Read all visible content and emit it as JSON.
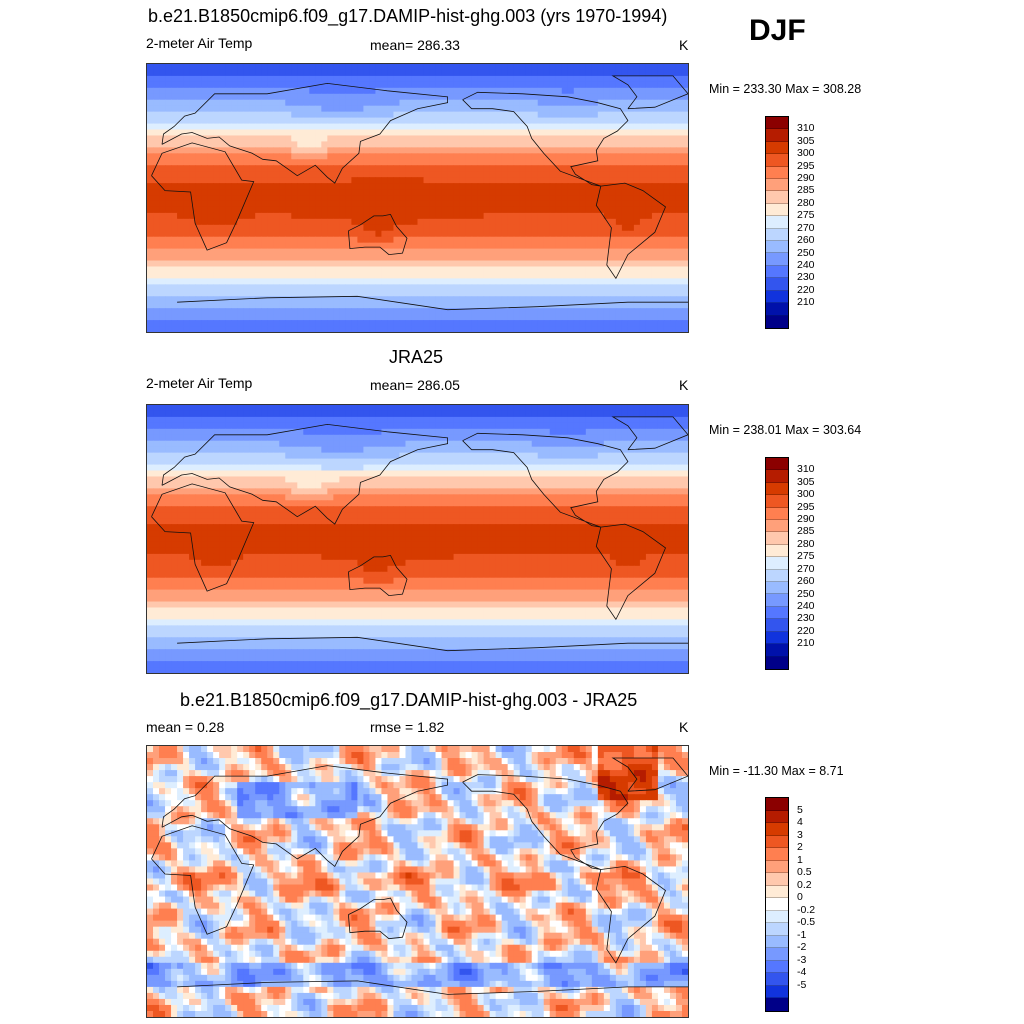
{
  "season": "DJF",
  "panels": [
    {
      "title": "b.e21.B1850cmip6.f09_g17.DAMIP-hist-ghg.003 (yrs 1970-1994)",
      "left": "2-meter Air Temp",
      "center": "mean= 286.33",
      "right": "K",
      "minmax": "Min = 233.30 Max = 308.28",
      "field": "model",
      "colorbar": {
        "colors": [
          "#8b0000",
          "#b51c00",
          "#d63b00",
          "#ee5722",
          "#ff7f50",
          "#ffa07a",
          "#ffc8ad",
          "#ffebd6",
          "#ddeeff",
          "#bcd6ff",
          "#99bbff",
          "#7799ff",
          "#5577ff",
          "#3355ee",
          "#1133dd",
          "#0011aa",
          "#000088"
        ],
        "labels": [
          "310",
          "305",
          "300",
          "295",
          "290",
          "285",
          "280",
          "275",
          "270",
          "260",
          "250",
          "240",
          "230",
          "220",
          "210"
        ]
      }
    },
    {
      "title": "JRA25",
      "left": "2-meter Air Temp",
      "center": "mean= 286.05",
      "right": "K",
      "minmax": "Min = 238.01 Max = 303.64",
      "field": "obs",
      "colorbar": {
        "colors": [
          "#8b0000",
          "#b51c00",
          "#d63b00",
          "#ee5722",
          "#ff7f50",
          "#ffa07a",
          "#ffc8ad",
          "#ffebd6",
          "#ddeeff",
          "#bcd6ff",
          "#99bbff",
          "#7799ff",
          "#5577ff",
          "#3355ee",
          "#1133dd",
          "#0011aa",
          "#000088"
        ],
        "labels": [
          "310",
          "305",
          "300",
          "295",
          "290",
          "285",
          "280",
          "275",
          "270",
          "260",
          "250",
          "240",
          "230",
          "220",
          "210"
        ]
      }
    },
    {
      "title": "b.e21.B1850cmip6.f09_g17.DAMIP-hist-ghg.003 - JRA25",
      "left": "mean =   0.28",
      "center": "rmse =    1.82",
      "right": "K",
      "minmax": "Min = -11.30 Max =   8.71",
      "field": "diff",
      "colorbar": {
        "colors": [
          "#8b0000",
          "#b51c00",
          "#d63b00",
          "#ee5722",
          "#ff7f50",
          "#ffa07a",
          "#ffc8ad",
          "#ffebd6",
          "#ffffff",
          "#ddeeff",
          "#bcd6ff",
          "#99bbff",
          "#7799ff",
          "#5577ff",
          "#3355ee",
          "#1133dd",
          "#000088"
        ],
        "labels": [
          "5",
          "4",
          "3",
          "2",
          "1",
          "0.5",
          "0.2",
          "0",
          "-0.2",
          "-0.5",
          "-1",
          "-2",
          "-3",
          "-4",
          "-5"
        ]
      }
    }
  ]
}
